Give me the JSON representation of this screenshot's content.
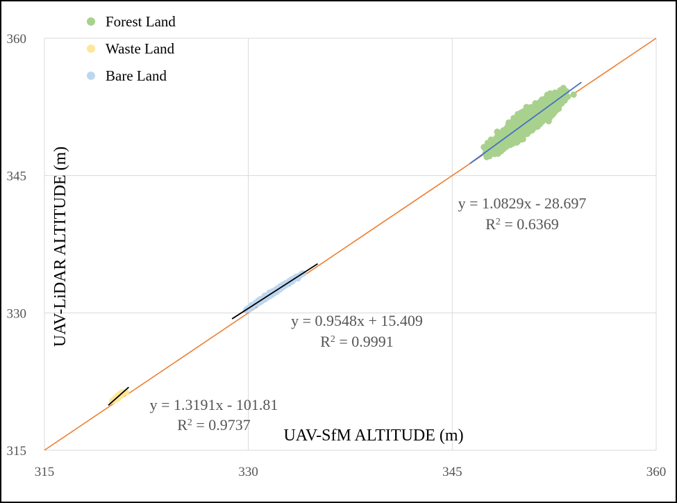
{
  "chart_data": {
    "type": "scatter",
    "xlabel": "UAV-SfM  ALTITUDE (m)",
    "ylabel": "UAV-LiDAR  ALTITUDE (m)",
    "xlim": [
      315,
      360
    ],
    "ylim": [
      315,
      360
    ],
    "xticks": [
      "315",
      "330",
      "345",
      "360"
    ],
    "yticks": [
      "315",
      "330",
      "345",
      "360"
    ],
    "grid": true,
    "legend_position": "top-left",
    "reference_line": {
      "x": [
        315,
        360
      ],
      "y": [
        315,
        360
      ],
      "color": "#ed7d31"
    },
    "series": [
      {
        "name": "Forest Land",
        "color": "#a9d18e",
        "cluster": {
          "x_range": [
            346.2,
            354.7
          ],
          "y_range": [
            345.2,
            355.4
          ],
          "count": 2500
        },
        "trendline": {
          "slope": 1.0829,
          "intercept": -28.697,
          "x_range": [
            346.3,
            354.5
          ],
          "color": "#4472c4"
        },
        "equation": "y = 1.0829x - 28.697",
        "r2_prefix": "R",
        "r2_sup": "2",
        "r2_value": " = 0.6369"
      },
      {
        "name": "Waste Land",
        "color": "#ffe699",
        "cluster": {
          "x_range": [
            319.6,
            321.3
          ],
          "y_range": [
            319.1,
            321.3
          ],
          "count": 60
        },
        "trendline": {
          "slope": 1.3191,
          "intercept": -101.81,
          "x_range": [
            319.7,
            321.2
          ],
          "color": "#000000"
        },
        "equation": "y = 1.3191x - 101.81",
        "r2_prefix": "R",
        "r2_sup": "2",
        "r2_value": " = 0.9737"
      },
      {
        "name": "Bare Land",
        "color": "#bdd7ee",
        "cluster": {
          "x_range": [
            328.6,
            335.3
          ],
          "y_range": [
            328.8,
            335.4
          ],
          "count": 300
        },
        "trendline": {
          "slope": 0.9548,
          "intercept": 15.409,
          "x_range": [
            328.8,
            335.1
          ],
          "color": "#000000"
        },
        "equation": "y = 0.9548x + 15.409",
        "r2_prefix": "R",
        "r2_sup": "2",
        "r2_value": " = 0.9991"
      }
    ]
  }
}
